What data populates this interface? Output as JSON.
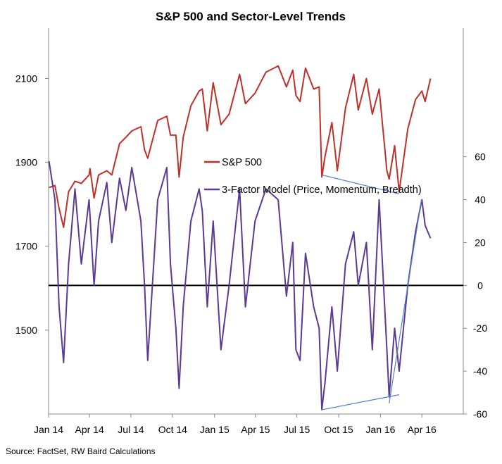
{
  "chart_data": {
    "type": "line",
    "title": "S&P 500 and Sector-Level Trends",
    "source": "Source: FactSet, RW Baird Calculations",
    "x_tick_labels": [
      "Jan 14",
      "Apr 14",
      "Jul 14",
      "Oct 14",
      "Jan 15",
      "Apr 15",
      "Jul 15",
      "Oct 15",
      "Jan 16",
      "Apr 16"
    ],
    "x_range": [
      "2014-01-01",
      "2016-07-01"
    ],
    "y_left": {
      "ticks": [
        "1500",
        "1700",
        "1900",
        "2100"
      ],
      "range": [
        1300,
        2220
      ]
    },
    "y_right": {
      "ticks": [
        "-60",
        "-40",
        "-20",
        "0",
        "20",
        "40",
        "60"
      ],
      "range": [
        -60,
        120
      ]
    },
    "grid": false,
    "legend_position": "center",
    "series": [
      {
        "name": "S&P 500",
        "axis": "left",
        "color": "#c0302b",
        "points": [
          [
            "2014-01-02",
            1840
          ],
          [
            "2014-01-15",
            1845
          ],
          [
            "2014-01-24",
            1790
          ],
          [
            "2014-02-03",
            1745
          ],
          [
            "2014-02-14",
            1830
          ],
          [
            "2014-02-28",
            1855
          ],
          [
            "2014-03-14",
            1850
          ],
          [
            "2014-03-31",
            1870
          ],
          [
            "2014-04-02",
            1885
          ],
          [
            "2014-04-11",
            1815
          ],
          [
            "2014-04-21",
            1870
          ],
          [
            "2014-05-09",
            1880
          ],
          [
            "2014-05-20",
            1870
          ],
          [
            "2014-06-06",
            1945
          ],
          [
            "2014-06-20",
            1960
          ],
          [
            "2014-07-03",
            1975
          ],
          [
            "2014-07-23",
            1985
          ],
          [
            "2014-07-31",
            1930
          ],
          [
            "2014-08-07",
            1910
          ],
          [
            "2014-08-29",
            2000
          ],
          [
            "2014-09-18",
            2010
          ],
          [
            "2014-09-26",
            1965
          ],
          [
            "2014-10-08",
            1965
          ],
          [
            "2014-10-15",
            1865
          ],
          [
            "2014-10-24",
            1960
          ],
          [
            "2014-11-10",
            2035
          ],
          [
            "2014-11-28",
            2070
          ],
          [
            "2014-12-05",
            2075
          ],
          [
            "2014-12-16",
            1975
          ],
          [
            "2014-12-29",
            2090
          ],
          [
            "2015-01-15",
            1990
          ],
          [
            "2015-02-02",
            2015
          ],
          [
            "2015-02-25",
            2110
          ],
          [
            "2015-03-10",
            2040
          ],
          [
            "2015-03-31",
            2065
          ],
          [
            "2015-04-24",
            2115
          ],
          [
            "2015-05-21",
            2130
          ],
          [
            "2015-06-08",
            2080
          ],
          [
            "2015-06-22",
            2120
          ],
          [
            "2015-06-29",
            2060
          ],
          [
            "2015-07-08",
            2045
          ],
          [
            "2015-07-20",
            2125
          ],
          [
            "2015-08-07",
            2075
          ],
          [
            "2015-08-19",
            2080
          ],
          [
            "2015-08-25",
            1865
          ],
          [
            "2015-09-01",
            1915
          ],
          [
            "2015-09-16",
            1995
          ],
          [
            "2015-09-28",
            1880
          ],
          [
            "2015-10-16",
            2030
          ],
          [
            "2015-11-03",
            2110
          ],
          [
            "2015-11-13",
            2025
          ],
          [
            "2015-12-01",
            2100
          ],
          [
            "2015-12-14",
            2015
          ],
          [
            "2015-12-29",
            2075
          ],
          [
            "2016-01-15",
            1880
          ],
          [
            "2016-01-20",
            1860
          ],
          [
            "2016-02-01",
            1940
          ],
          [
            "2016-02-11",
            1830
          ],
          [
            "2016-03-01",
            1980
          ],
          [
            "2016-03-18",
            2050
          ],
          [
            "2016-04-01",
            2070
          ],
          [
            "2016-04-08",
            2045
          ],
          [
            "2016-04-20",
            2100
          ]
        ]
      },
      {
        "name": "3-Factor Model (Price, Momentum, Breadth)",
        "axis": "right",
        "color": "#5b3a96",
        "points": [
          [
            "2014-01-02",
            58
          ],
          [
            "2014-01-15",
            40
          ],
          [
            "2014-01-24",
            -10
          ],
          [
            "2014-02-03",
            -36
          ],
          [
            "2014-02-14",
            10
          ],
          [
            "2014-02-28",
            45
          ],
          [
            "2014-03-14",
            10
          ],
          [
            "2014-03-31",
            40
          ],
          [
            "2014-04-11",
            0
          ],
          [
            "2014-04-21",
            30
          ],
          [
            "2014-05-09",
            48
          ],
          [
            "2014-05-20",
            20
          ],
          [
            "2014-06-06",
            50
          ],
          [
            "2014-06-20",
            35
          ],
          [
            "2014-07-03",
            55
          ],
          [
            "2014-07-23",
            30
          ],
          [
            "2014-07-31",
            0
          ],
          [
            "2014-08-07",
            -35
          ],
          [
            "2014-08-29",
            40
          ],
          [
            "2014-09-18",
            55
          ],
          [
            "2014-09-26",
            10
          ],
          [
            "2014-10-08",
            -20
          ],
          [
            "2014-10-15",
            -48
          ],
          [
            "2014-10-24",
            -10
          ],
          [
            "2014-11-10",
            30
          ],
          [
            "2014-11-28",
            45
          ],
          [
            "2014-12-05",
            35
          ],
          [
            "2014-12-16",
            -10
          ],
          [
            "2014-12-29",
            30
          ],
          [
            "2015-01-15",
            -30
          ],
          [
            "2015-02-02",
            0
          ],
          [
            "2015-02-25",
            45
          ],
          [
            "2015-03-10",
            -10
          ],
          [
            "2015-03-31",
            30
          ],
          [
            "2015-04-24",
            45
          ],
          [
            "2015-05-21",
            40
          ],
          [
            "2015-06-08",
            -5
          ],
          [
            "2015-06-22",
            20
          ],
          [
            "2015-06-29",
            -30
          ],
          [
            "2015-07-08",
            -35
          ],
          [
            "2015-07-20",
            15
          ],
          [
            "2015-08-07",
            -10
          ],
          [
            "2015-08-19",
            -20
          ],
          [
            "2015-08-25",
            -58
          ],
          [
            "2015-09-01",
            -45
          ],
          [
            "2015-09-16",
            -10
          ],
          [
            "2015-09-28",
            -40
          ],
          [
            "2015-10-16",
            10
          ],
          [
            "2015-11-03",
            25
          ],
          [
            "2015-11-13",
            0
          ],
          [
            "2015-12-01",
            20
          ],
          [
            "2015-12-14",
            -30
          ],
          [
            "2015-12-29",
            40
          ],
          [
            "2016-01-15",
            -30
          ],
          [
            "2016-01-20",
            -52
          ],
          [
            "2016-02-01",
            -20
          ],
          [
            "2016-02-11",
            -40
          ],
          [
            "2016-03-01",
            0
          ],
          [
            "2016-03-18",
            25
          ],
          [
            "2016-04-01",
            40
          ],
          [
            "2016-04-08",
            28
          ],
          [
            "2016-04-20",
            22
          ]
        ]
      }
    ],
    "annotations": {
      "zero_line_value": 0,
      "sp500_trendline": [
        [
          "2015-08-25",
          1870
        ],
        [
          "2016-02-11",
          1825
        ]
      ],
      "model_trendline_low": [
        [
          "2015-08-25",
          -58
        ],
        [
          "2016-02-11",
          -51
        ]
      ],
      "model_trendline_rise": [
        [
          "2016-01-20",
          -55
        ],
        [
          "2016-03-31",
          40
        ]
      ]
    }
  }
}
